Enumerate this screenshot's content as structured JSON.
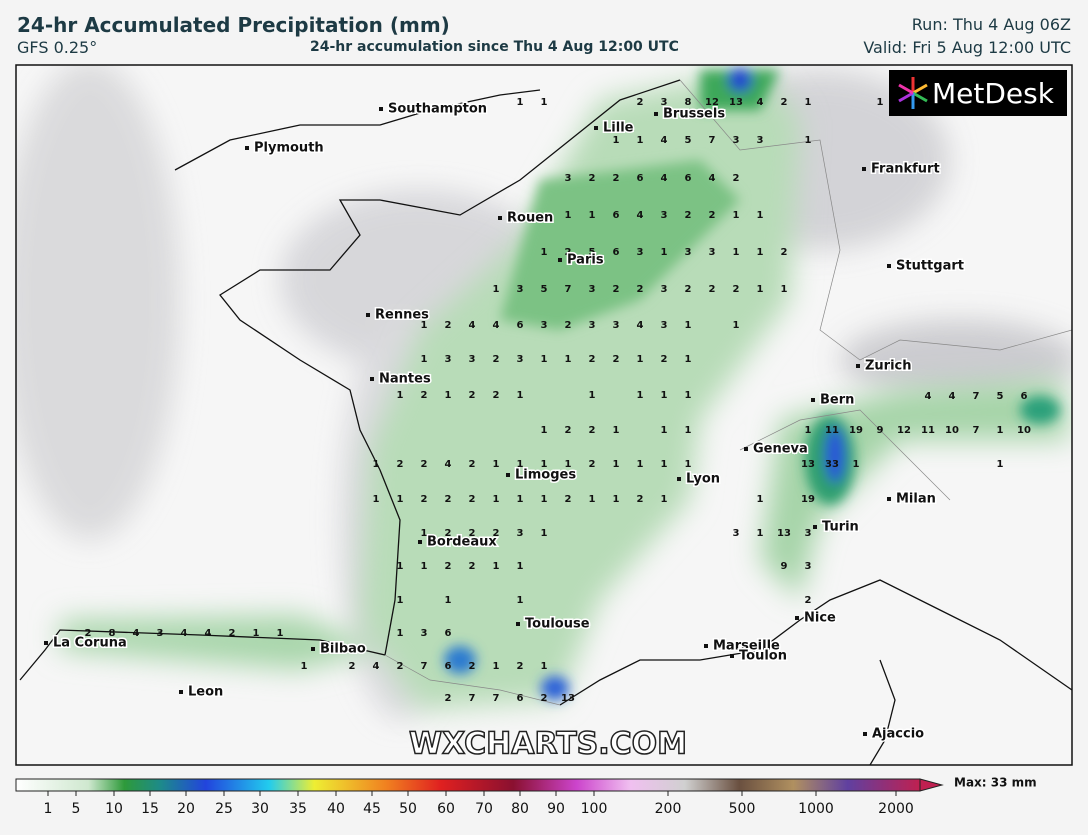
{
  "header": {
    "title": "24-hr Accumulated Precipitation (mm)",
    "model": "GFS 0.25°",
    "subtitle": "24-hr accumulation since Thu 4 Aug 12:00 UTC",
    "run": "Run: Thu 4 Aug 06Z",
    "valid": "Valid: Fri 5 Aug 12:00 UTC"
  },
  "map": {
    "logo": "MetDesk",
    "watermark": "WXCHARTS.COM",
    "cities": [
      "Southampton",
      "Plymouth",
      "Lille",
      "Brussels",
      "Frankfurt",
      "Rouen",
      "Paris",
      "Stuttgart",
      "Rennes",
      "Nantes",
      "Zurich",
      "Bern",
      "Geneva",
      "Limoges",
      "Lyon",
      "Milan",
      "Bordeaux",
      "Turin",
      "Nice",
      "Toulouse",
      "Marseille",
      "Toulon",
      "La Coruna",
      "Bilbao",
      "Leon",
      "Ajaccio"
    ],
    "value_rows": [
      [
        1,
        1,
        null,
        null,
        null,
        2,
        3,
        8,
        12,
        13,
        4,
        2,
        1,
        null,
        null,
        1
      ],
      [
        1,
        1,
        4,
        5,
        7,
        3,
        3,
        null,
        1
      ],
      [
        3,
        2,
        2,
        6,
        4,
        6,
        4,
        2
      ],
      [
        1,
        1,
        6,
        4,
        3,
        2,
        2,
        1,
        1
      ],
      [
        1,
        2,
        5,
        6,
        3,
        1,
        3,
        3,
        1,
        1,
        2
      ],
      [
        1,
        3,
        5,
        7,
        3,
        2,
        2,
        3,
        2,
        2,
        2,
        1,
        1
      ],
      [
        1,
        2,
        4,
        4,
        6,
        3,
        2,
        3,
        3,
        4,
        3,
        1,
        null,
        1
      ],
      [
        1,
        3,
        3,
        2,
        3,
        1,
        1,
        2,
        2,
        1,
        2,
        1
      ],
      [
        1,
        2,
        1,
        2,
        2,
        1,
        null,
        null,
        1,
        null,
        1,
        1,
        1
      ],
      [
        1,
        2,
        2,
        1,
        null,
        1,
        1
      ],
      [
        1,
        2,
        2,
        4,
        2,
        1,
        1,
        1,
        1,
        2,
        1,
        1,
        1,
        1
      ],
      [
        1,
        1,
        2,
        2,
        2,
        1,
        1,
        1,
        2,
        1,
        1,
        2,
        1
      ],
      [
        1,
        2,
        2,
        2,
        3,
        1
      ],
      [
        1,
        1,
        2,
        2,
        1,
        1
      ],
      [
        1,
        null,
        1,
        null,
        null,
        1
      ],
      [
        1,
        3,
        6
      ],
      [
        2,
        7,
        6,
        2,
        1,
        2,
        1
      ],
      [
        2,
        7,
        7,
        6,
        2,
        13
      ],
      [
        2,
        8,
        4,
        3,
        4,
        4,
        2,
        1,
        1
      ],
      [
        1,
        null,
        2,
        4
      ],
      [
        4,
        4,
        7,
        5,
        6
      ],
      [
        1,
        11,
        19,
        9,
        12,
        11,
        10,
        7,
        1,
        10
      ],
      [
        13,
        33,
        1,
        null,
        null,
        null,
        null,
        null,
        1
      ],
      [
        1,
        null,
        19
      ],
      [
        3,
        1,
        13,
        3
      ],
      [
        9,
        3
      ],
      [
        2
      ]
    ]
  },
  "legend": {
    "labels": [
      1,
      5,
      10,
      15,
      20,
      25,
      30,
      35,
      40,
      45,
      50,
      60,
      70,
      80,
      90,
      100,
      200,
      500,
      1000,
      2000
    ],
    "max": "Max: 33 mm"
  }
}
